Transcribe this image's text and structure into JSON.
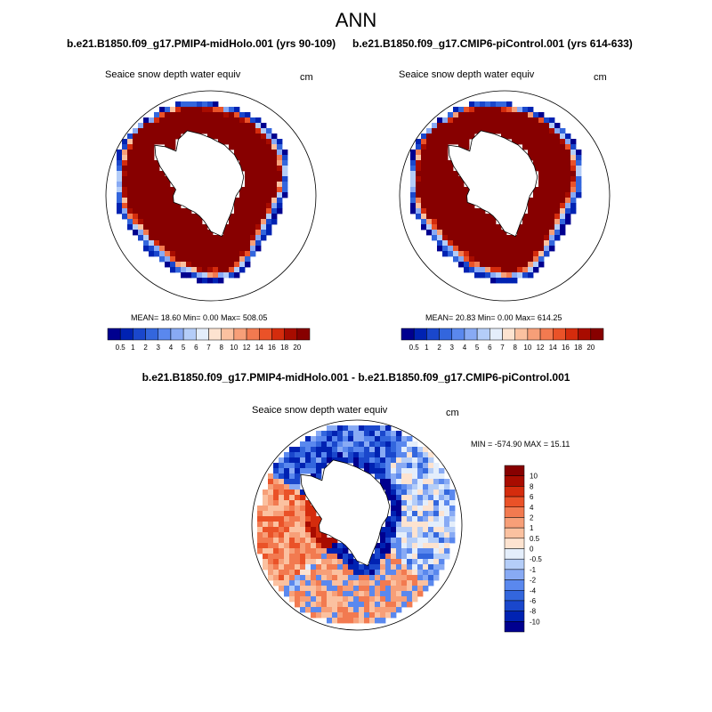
{
  "title": "ANN",
  "panels": [
    {
      "case": "b.e21.B1850.f09_g17.PMIP4-midHolo.001 (yrs 90-109)",
      "variable": "Seaice snow depth water equiv",
      "units": "cm",
      "stats": "MEAN=  18.60  Min=   0.00  Max= 508.05"
    },
    {
      "case": "b.e21.B1850.f09_g17.CMIP6-piControl.001 (yrs 614-633)",
      "variable": "Seaice snow depth water equiv",
      "units": "cm",
      "stats": "MEAN=  20.83  Min=   0.00  Max= 614.25"
    }
  ],
  "difference": {
    "title": "b.e21.B1850.f09_g17.PMIP4-midHolo.001 - b.e21.B1850.f09_g17.CMIP6-piControl.001",
    "variable": "Seaice snow depth water equiv",
    "units": "cm",
    "stats": "MIN = -574.90 MAX =  15.11"
  },
  "chart_data": [
    {
      "type": "heatmap",
      "projection": "south polar stereographic",
      "title": "Seaice snow depth water equiv",
      "units": "cm",
      "mean": 18.6,
      "min": 0.0,
      "max": 508.05,
      "colorbar": {
        "orientation": "horizontal",
        "levels": [
          "0.5",
          "1",
          "2",
          "3",
          "4",
          "5",
          "6",
          "7",
          "8",
          "10",
          "12",
          "14",
          "16",
          "18",
          "20"
        ],
        "colors": [
          "#00008f",
          "#0022b2",
          "#1a47cc",
          "#3366dd",
          "#5a88ee",
          "#88aaf4",
          "#b4cdf8",
          "#e4eefb",
          "#fde3d0",
          "#fbc1a0",
          "#f79f78",
          "#f27a50",
          "#ea5228",
          "#d42c0d",
          "#a80c00",
          "#870000"
        ]
      }
    },
    {
      "type": "heatmap",
      "projection": "south polar stereographic",
      "title": "Seaice snow depth water equiv",
      "units": "cm",
      "mean": 20.83,
      "min": 0.0,
      "max": 614.25,
      "colorbar": {
        "orientation": "horizontal",
        "levels": [
          "0.5",
          "1",
          "2",
          "3",
          "4",
          "5",
          "6",
          "7",
          "8",
          "10",
          "12",
          "14",
          "16",
          "18",
          "20"
        ],
        "colors": [
          "#00008f",
          "#0022b2",
          "#1a47cc",
          "#3366dd",
          "#5a88ee",
          "#88aaf4",
          "#b4cdf8",
          "#e4eefb",
          "#fde3d0",
          "#fbc1a0",
          "#f79f78",
          "#f27a50",
          "#ea5228",
          "#d42c0d",
          "#a80c00",
          "#870000"
        ]
      }
    },
    {
      "type": "heatmap",
      "projection": "south polar stereographic",
      "title": "Seaice snow depth water equiv",
      "units": "cm",
      "min": -574.9,
      "max": 15.11,
      "colorbar": {
        "orientation": "vertical",
        "levels": [
          "10",
          "8",
          "6",
          "4",
          "2",
          "1",
          "0.5",
          "0",
          "-0.5",
          "-1",
          "-2",
          "-4",
          "-6",
          "-8",
          "-10"
        ],
        "colors": [
          "#870000",
          "#a80c00",
          "#d42c0d",
          "#ea5228",
          "#f27a50",
          "#f79f78",
          "#fbc1a0",
          "#fde3d0",
          "#e4eefb",
          "#b4cdf8",
          "#88aaf4",
          "#5a88ee",
          "#3366dd",
          "#1a47cc",
          "#0022b2",
          "#00008f"
        ]
      }
    }
  ]
}
